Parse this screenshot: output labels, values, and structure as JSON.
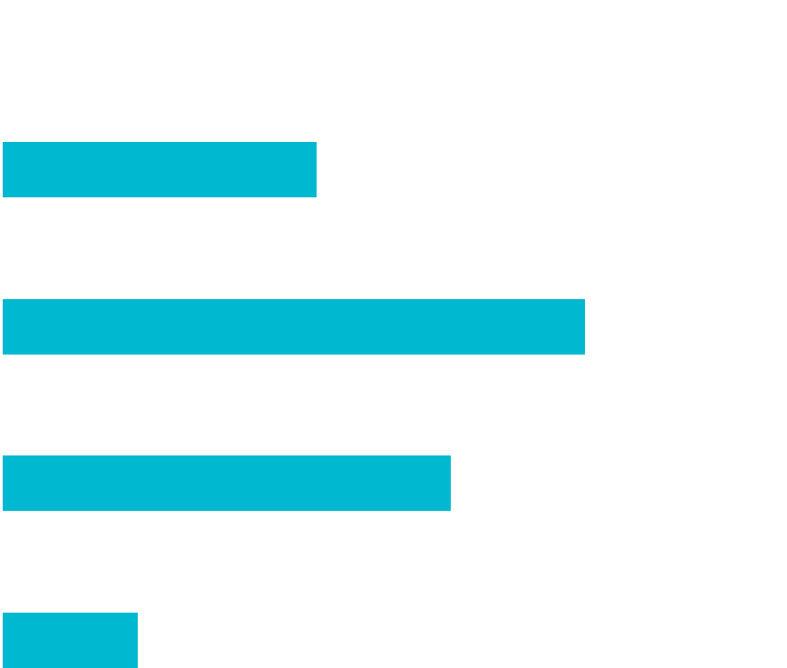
{
  "icon": {
    "name": "menu-lines-icon",
    "color": "#00b8d0",
    "lines": [
      {
        "name": "line-1",
        "level": 0.54
      },
      {
        "name": "line-2",
        "level": 1.0
      },
      {
        "name": "line-3",
        "level": 0.77
      },
      {
        "name": "line-4",
        "level": 0.23
      }
    ]
  }
}
